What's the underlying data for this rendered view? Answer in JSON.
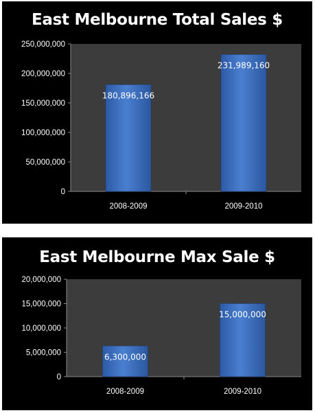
{
  "chart_data": [
    {
      "type": "bar",
      "title": "East Melbourne Total Sales $",
      "categories": [
        "2008-2009",
        "2009-2010"
      ],
      "values": [
        180896166,
        231989160
      ],
      "data_labels": [
        "180,896,166",
        "231,989,160"
      ],
      "ylim": [
        0,
        250000000
      ],
      "yticks": [
        0,
        50000000,
        100000000,
        150000000,
        200000000,
        250000000
      ],
      "ytick_labels": [
        "0",
        "50,000,000",
        "100,000,000",
        "150,000,000",
        "200,000,000",
        "250,000,000"
      ],
      "xlabel": "",
      "ylabel": "",
      "grid": false,
      "legend": "none",
      "colors": {
        "bar": "#4a7fd0",
        "plot_bg": "#3c3c3c",
        "background": "#000000",
        "text": "#ffffff"
      }
    },
    {
      "type": "bar",
      "title": "East Melbourne Max Sale $",
      "categories": [
        "2008-2009",
        "2009-2010"
      ],
      "values": [
        6300000,
        15000000
      ],
      "data_labels": [
        "6,300,000",
        "15,000,000"
      ],
      "ylim": [
        0,
        20000000
      ],
      "yticks": [
        0,
        5000000,
        10000000,
        15000000,
        20000000
      ],
      "ytick_labels": [
        "0",
        "5,000,000",
        "10,000,000",
        "15,000,000",
        "20,000,000"
      ],
      "xlabel": "",
      "ylabel": "",
      "grid": false,
      "legend": "none",
      "colors": {
        "bar": "#4a7fd0",
        "plot_bg": "#3c3c3c",
        "background": "#000000",
        "text": "#ffffff"
      }
    }
  ]
}
